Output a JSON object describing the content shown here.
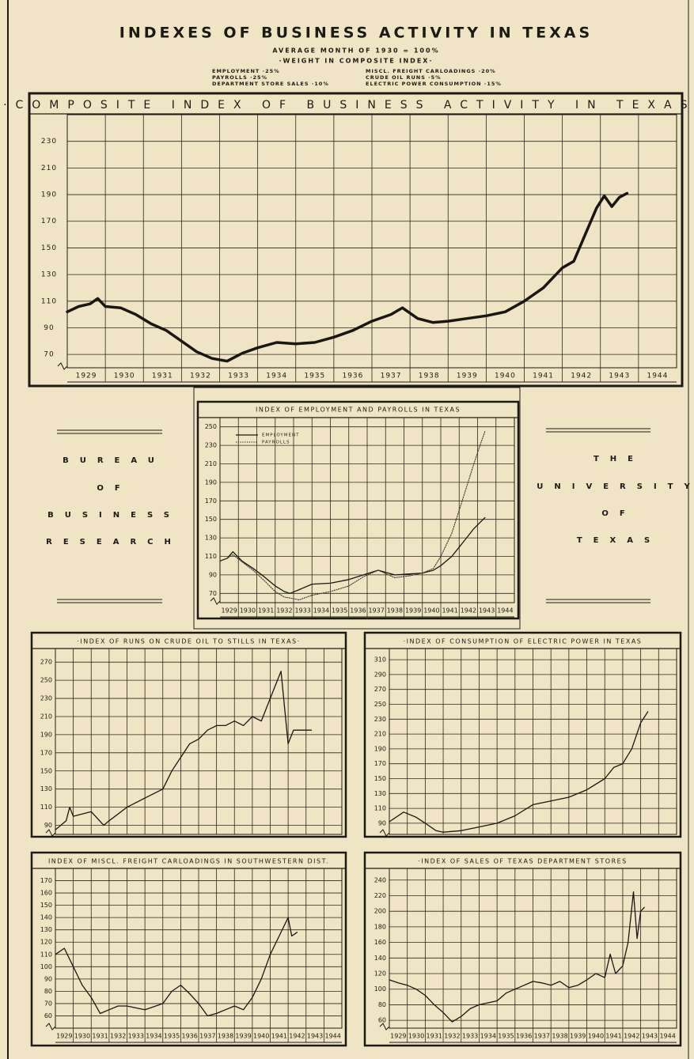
{
  "header": {
    "title": "INDEXES OF BUSINESS ACTIVITY IN TEXAS",
    "subtitle": "AVERAGE MONTH OF 1930 = 100%",
    "weights_title": "·WEIGHT IN COMPOSITE INDEX·",
    "weights_left": [
      "EMPLOYMENT ·25%",
      "PAYROLLS ·25%",
      "DEPARTMENT STORE SALES ·10%"
    ],
    "weights_right": [
      "MISCL. FREIGHT CARLOADINGS ·20%",
      "CRUDE OIL RUNS ·5%",
      "ELECTRIC POWER CONSUMPTION ·15%"
    ]
  },
  "left_panel": {
    "lines": [
      "BUREAU",
      "OF",
      "BUSINESS",
      "RESEARCH"
    ]
  },
  "right_panel": {
    "lines": [
      "THE",
      "UNIVERSITY",
      "OF",
      "TEXAS"
    ]
  },
  "chart_data": [
    {
      "type": "line",
      "title": "·COMPOSITE INDEX OF BUSINESS ACTIVITY IN TEXAS·",
      "categories": [
        "1929",
        "1930",
        "1931",
        "1932",
        "1933",
        "1934",
        "1935",
        "1936",
        "1937",
        "1938",
        "1939",
        "1940",
        "1941",
        "1942",
        "1943",
        "1944"
      ],
      "xlim": [
        1929,
        1945
      ],
      "ylim": [
        60,
        250
      ],
      "yticks": [
        70,
        90,
        110,
        130,
        150,
        170,
        190,
        210,
        230
      ],
      "grid": true,
      "x": [
        1929.0,
        1929.3,
        1929.6,
        1929.8,
        1930.0,
        1930.4,
        1930.8,
        1931.2,
        1931.6,
        1932.0,
        1932.4,
        1932.8,
        1933.2,
        1933.6,
        1934.0,
        1934.5,
        1935.0,
        1935.5,
        1936.0,
        1936.5,
        1937.0,
        1937.5,
        1937.8,
        1938.2,
        1938.6,
        1939.0,
        1939.5,
        1940.0,
        1940.5,
        1941.0,
        1941.5,
        1942.0,
        1942.3,
        1942.6,
        1942.9,
        1943.1,
        1943.3,
        1943.5,
        1943.7
      ],
      "series": [
        {
          "name": "Composite",
          "color": "#1a1712",
          "values": [
            102,
            106,
            108,
            112,
            106,
            105,
            100,
            93,
            88,
            80,
            72,
            67,
            65,
            71,
            75,
            79,
            78,
            79,
            83,
            88,
            95,
            100,
            105,
            97,
            94,
            95,
            97,
            99,
            102,
            110,
            120,
            135,
            140,
            160,
            180,
            189,
            181,
            188,
            191
          ]
        }
      ]
    },
    {
      "type": "line",
      "title": "INDEX OF EMPLOYMENT AND PAYROLLS IN TEXAS",
      "categories": [
        "1929",
        "1930",
        "1931",
        "1932",
        "1933",
        "1934",
        "1935",
        "1936",
        "1937",
        "1938",
        "1939",
        "1940",
        "1941",
        "1942",
        "1943",
        "1944"
      ],
      "xlim": [
        1929,
        1945
      ],
      "ylim": [
        60,
        260
      ],
      "yticks": [
        70,
        90,
        110,
        130,
        150,
        170,
        190,
        210,
        230,
        250
      ],
      "grid": true,
      "legend": "upper left",
      "x": [
        1929.0,
        1929.4,
        1929.7,
        1930.2,
        1930.8,
        1931.4,
        1932.0,
        1932.5,
        1932.8,
        1933.3,
        1934.0,
        1935.0,
        1936.0,
        1936.8,
        1937.6,
        1938.5,
        1939.3,
        1940.0,
        1940.6,
        1941.0,
        1941.6,
        1942.0,
        1942.4,
        1942.8,
        1943.1,
        1943.4
      ],
      "series": [
        {
          "name": "EMPLOYMENT",
          "color": "#1a1712",
          "line_style": "solid",
          "values": [
            105,
            108,
            115,
            105,
            97,
            88,
            78,
            72,
            70,
            74,
            80,
            81,
            85,
            90,
            95,
            90,
            91,
            92,
            95,
            100,
            110,
            120,
            130,
            140,
            146,
            152
          ]
        },
        {
          "name": "PAYROLLS",
          "color": "#3a352c",
          "line_style": "dotted",
          "values": [
            105,
            108,
            112,
            104,
            95,
            84,
            72,
            66,
            65,
            63,
            68,
            72,
            78,
            88,
            95,
            87,
            89,
            92,
            97,
            110,
            135,
            160,
            185,
            210,
            228,
            245
          ]
        }
      ]
    },
    {
      "type": "line",
      "title": "·INDEX OF RUNS ON CRUDE OIL TO STILLS IN TEXAS·",
      "xlim": [
        1929,
        1945
      ],
      "ylim": [
        80,
        285
      ],
      "yticks": [
        90,
        110,
        130,
        150,
        170,
        190,
        210,
        230,
        250,
        270
      ],
      "grid": true,
      "x": [
        1929.0,
        1929.6,
        1929.8,
        1930.0,
        1931.0,
        1931.7,
        1932.0,
        1933.0,
        1934.0,
        1935.0,
        1935.5,
        1936.0,
        1936.5,
        1937.0,
        1937.5,
        1938.0,
        1938.5,
        1939.0,
        1939.5,
        1940.0,
        1940.5,
        1941.0,
        1941.6,
        1942.0,
        1942.3,
        1942.8,
        1943.3
      ],
      "series": [
        {
          "name": "Crude oil runs",
          "color": "#1a1712",
          "values": [
            85,
            95,
            110,
            100,
            105,
            90,
            95,
            110,
            120,
            130,
            150,
            165,
            180,
            185,
            195,
            200,
            200,
            205,
            200,
            210,
            205,
            230,
            260,
            180,
            195,
            195,
            195
          ]
        }
      ]
    },
    {
      "type": "line",
      "title": "·INDEX OF CONSUMPTION OF ELECTRIC POWER IN TEXAS",
      "xlim": [
        1929,
        1945
      ],
      "ylim": [
        75,
        325
      ],
      "yticks": [
        90,
        110,
        130,
        150,
        170,
        190,
        210,
        230,
        250,
        270,
        290,
        310
      ],
      "grid": true,
      "x": [
        1929.0,
        1929.8,
        1930.5,
        1931.0,
        1931.6,
        1932.0,
        1933.0,
        1934.0,
        1935.0,
        1936.0,
        1937.0,
        1938.0,
        1939.0,
        1940.0,
        1941.0,
        1941.5,
        1942.0,
        1942.5,
        1943.0,
        1943.4
      ],
      "series": [
        {
          "name": "Electric power",
          "color": "#1a1712",
          "values": [
            92,
            105,
            98,
            90,
            80,
            78,
            80,
            85,
            90,
            100,
            115,
            120,
            125,
            135,
            150,
            165,
            170,
            190,
            225,
            240
          ]
        }
      ]
    },
    {
      "type": "line",
      "title": "INDEX OF MISCL. FREIGHT CARLOADINGS IN SOUTHWESTERN DIST.",
      "categories": [
        "1929",
        "1930",
        "1931",
        "1932",
        "1933",
        "1934",
        "1935",
        "1936",
        "1937",
        "1938",
        "1939",
        "1940",
        "1941",
        "1942",
        "1943",
        "1944"
      ],
      "xlim": [
        1929,
        1945
      ],
      "ylim": [
        50,
        180
      ],
      "yticks": [
        60,
        70,
        80,
        90,
        100,
        110,
        120,
        130,
        140,
        150,
        160,
        170
      ],
      "grid": true,
      "x": [
        1929.0,
        1929.5,
        1930.0,
        1930.5,
        1931.0,
        1931.5,
        1932.0,
        1932.5,
        1933.0,
        1934.0,
        1935.0,
        1935.5,
        1936.0,
        1936.5,
        1937.0,
        1937.5,
        1938.0,
        1938.5,
        1939.0,
        1939.5,
        1940.0,
        1940.5,
        1941.0,
        1941.5,
        1942.0,
        1942.2,
        1942.5
      ],
      "series": [
        {
          "name": "Freight carloadings",
          "color": "#1a1712",
          "values": [
            110,
            115,
            100,
            85,
            75,
            62,
            65,
            68,
            68,
            65,
            70,
            80,
            85,
            78,
            70,
            60,
            62,
            65,
            68,
            65,
            75,
            90,
            110,
            125,
            140,
            125,
            128
          ]
        }
      ]
    },
    {
      "type": "line",
      "title": "·INDEX OF SALES OF TEXAS DEPARTMENT STORES",
      "categories": [
        "1929",
        "1930",
        "1931",
        "1932",
        "1933",
        "1934",
        "1935",
        "1936",
        "1937",
        "1938",
        "1939",
        "1940",
        "1941",
        "1942",
        "1943",
        "1944"
      ],
      "xlim": [
        1929,
        1945
      ],
      "ylim": [
        50,
        255
      ],
      "yticks": [
        60,
        80,
        100,
        120,
        140,
        160,
        180,
        200,
        220,
        240
      ],
      "grid": true,
      "x": [
        1929.0,
        1929.5,
        1930.0,
        1930.5,
        1931.0,
        1931.5,
        1932.0,
        1932.5,
        1933.0,
        1933.5,
        1934.0,
        1935.0,
        1935.5,
        1936.0,
        1936.5,
        1937.0,
        1937.5,
        1938.0,
        1938.5,
        1939.0,
        1939.5,
        1940.0,
        1940.5,
        1941.0,
        1941.3,
        1941.6,
        1942.0,
        1942.3,
        1942.6,
        1942.8,
        1943.0,
        1943.2
      ],
      "series": [
        {
          "name": "Department store sales",
          "color": "#1a1712",
          "values": [
            112,
            108,
            105,
            100,
            92,
            80,
            70,
            58,
            65,
            75,
            80,
            85,
            95,
            100,
            105,
            110,
            108,
            105,
            110,
            102,
            105,
            112,
            120,
            115,
            145,
            120,
            130,
            160,
            225,
            165,
            200,
            205
          ]
        }
      ]
    }
  ]
}
